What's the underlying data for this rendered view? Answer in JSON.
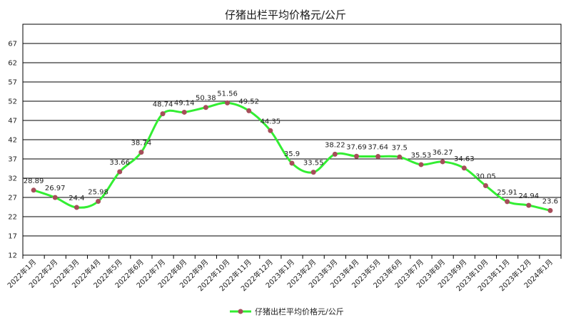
{
  "chart_data": {
    "type": "line",
    "title": "仔猪出栏平均价格元/公斤",
    "xlabel": "",
    "ylabel": "",
    "categories": [
      "2022年1月",
      "2022年2月",
      "2022年3月",
      "2022年4月",
      "2022年5月",
      "2022年6月",
      "2022年7月",
      "2022年8月",
      "2022年9月",
      "2022年10月",
      "2022年11月",
      "2022年12月",
      "2023年1月",
      "2023年2月",
      "2023年3月",
      "2023年4月",
      "2023年5月",
      "2023年6月",
      "2023年7月",
      "2023年8月",
      "2023年9月",
      "2023年10月",
      "2023年11月",
      "2023年12月",
      "2024年1月"
    ],
    "value_labels": [
      "28.89",
      "26.97",
      "24.4",
      "25.98",
      "33.66",
      "38.74",
      "48.74",
      "49.14",
      "50.38",
      "51.56",
      "49.52",
      "44.35",
      "35.9",
      "33.55",
      "38.22",
      "37.69",
      "37.64",
      "37.5",
      "35.53",
      "36.27",
      "34.63",
      "30.05",
      "25.91",
      "24.94",
      "23.6"
    ],
    "series": [
      {
        "name": "仔猪出栏平均价格元/公斤",
        "values": [
          28.89,
          26.97,
          24.4,
          25.98,
          33.66,
          38.74,
          48.74,
          49.14,
          50.38,
          51.56,
          49.52,
          44.35,
          35.9,
          33.55,
          38.22,
          37.69,
          37.64,
          37.5,
          35.53,
          36.27,
          34.63,
          30.05,
          25.91,
          24.94,
          23.6
        ]
      }
    ],
    "yticks": [
      12,
      17,
      22,
      27,
      32,
      37,
      42,
      47,
      52,
      57,
      62,
      67
    ],
    "ylim": [
      12,
      72
    ],
    "grid": true,
    "legend_position": "bottom-center",
    "line_color": "#33ee33",
    "marker_color": "#a64d5a"
  }
}
